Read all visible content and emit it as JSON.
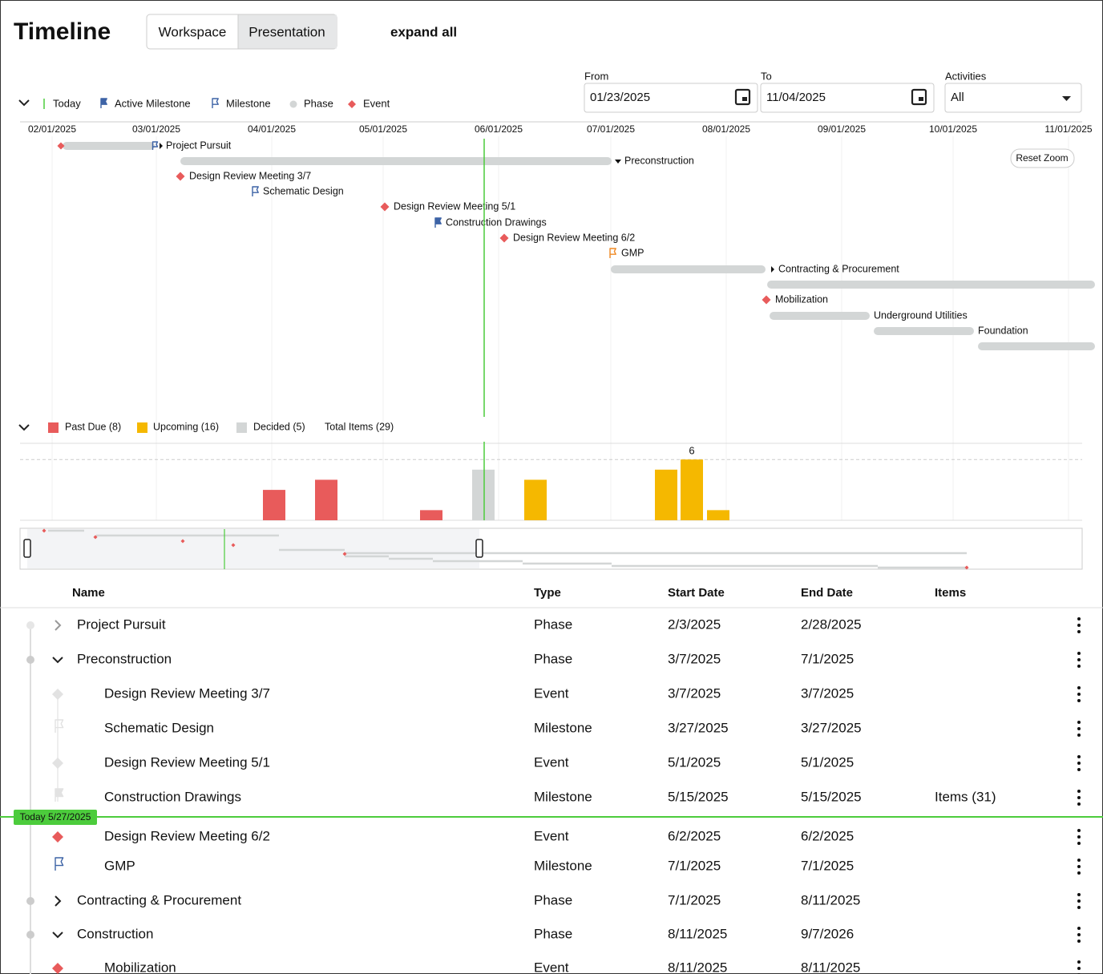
{
  "header": {
    "title": "Timeline",
    "tabs": [
      "Workspace",
      "Presentation"
    ],
    "expand_all": "expand all"
  },
  "legend": [
    "Today",
    "Active Milestone",
    "Milestone",
    "Phase",
    "Event"
  ],
  "filters": {
    "from": {
      "label": "From",
      "value": "01/23/2025"
    },
    "to": {
      "label": "To",
      "value": "11/04/2025"
    },
    "activities": {
      "label": "Activities",
      "value": "All"
    }
  },
  "gantt": {
    "dates": [
      "02/01/2025",
      "03/01/2025",
      "04/01/2025",
      "05/01/2025",
      "06/01/2025",
      "07/01/2025",
      "08/01/2025",
      "09/01/2025",
      "10/01/2025",
      "11/01/2025"
    ],
    "reset_zoom": "Reset Zoom",
    "items": [
      "Project Pursuit",
      "Preconstruction",
      "Design Review Meeting 3/7",
      "Schematic Design",
      "Design Review Meeting 5/1",
      "Construction Drawings",
      "Design Review Meeting 6/2",
      "GMP",
      "Contracting & Procurement",
      "Mobilization",
      "Underground Utilities",
      "Foundation"
    ]
  },
  "chart_data": {
    "type": "bar",
    "series": [
      {
        "name": "Past Due (8)",
        "color": "#e85b5b",
        "values": [
          3,
          4,
          1
        ]
      },
      {
        "name": "Upcoming (16)",
        "color": "#f5b800",
        "values": [
          4,
          5,
          6,
          1
        ]
      },
      {
        "name": "Decided (5)",
        "color": "#d3d6d6",
        "values": [
          5
        ]
      }
    ],
    "total_label": "Total Items (29)",
    "ylim": [
      0,
      7.6
    ],
    "yticks": [
      6
    ]
  },
  "table": {
    "columns": [
      "Name",
      "Type",
      "Start Date",
      "End Date",
      "Items"
    ],
    "today": "Today 5/27/2025",
    "rows": [
      {
        "name": "Project Pursuit",
        "type": "Phase",
        "start": "2/3/2025",
        "end": "2/28/2025"
      },
      {
        "name": "Preconstruction",
        "type": "Phase",
        "start": "3/7/2025",
        "end": "7/1/2025"
      },
      {
        "name": "Design Review Meeting 3/7",
        "type": "Event",
        "start": "3/7/2025",
        "end": "3/7/2025"
      },
      {
        "name": "Schematic Design",
        "type": "Milestone",
        "start": "3/27/2025",
        "end": "3/27/2025"
      },
      {
        "name": "Design Review Meeting 5/1",
        "type": "Event",
        "start": "5/1/2025",
        "end": "5/1/2025"
      },
      {
        "name": "Construction Drawings",
        "type": "Milestone",
        "start": "5/15/2025",
        "end": "5/15/2025",
        "items": "Items (31)"
      },
      {
        "name": "Design Review Meeting 6/2",
        "type": "Event",
        "start": "6/2/2025",
        "end": "6/2/2025"
      },
      {
        "name": "GMP",
        "type": "Milestone",
        "start": "7/1/2025",
        "end": "7/1/2025"
      },
      {
        "name": "Contracting & Procurement",
        "type": "Phase",
        "start": "7/1/2025",
        "end": "8/11/2025"
      },
      {
        "name": "Construction",
        "type": "Phase",
        "start": "8/11/2025",
        "end": "9/7/2026"
      },
      {
        "name": "Mobilization",
        "type": "Event",
        "start": "8/11/2025",
        "end": "8/11/2025"
      }
    ]
  }
}
